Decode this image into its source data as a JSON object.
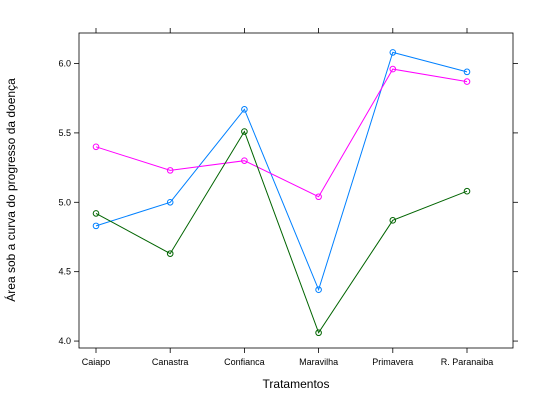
{
  "chart_data": {
    "type": "line",
    "xlabel": "Tratamentos",
    "ylabel": "Área sob a curva do progresso da doença",
    "categories": [
      "Caiapo",
      "Canastra",
      "Confianca",
      "Maravilha",
      "Primavera",
      "R. Paranaiba"
    ],
    "yticks": [
      "4.0",
      "4.5",
      "5.0",
      "5.5",
      "6.0"
    ],
    "ylim": [
      3.95,
      6.22
    ],
    "grid": false,
    "legend": "none",
    "series": [
      {
        "color": "#0080ff",
        "values": [
          4.83,
          5.0,
          5.67,
          4.37,
          6.08,
          5.94
        ]
      },
      {
        "color": "#ff00ff",
        "values": [
          5.4,
          5.23,
          5.3,
          5.04,
          5.96,
          5.87
        ]
      },
      {
        "color": "#006400",
        "values": [
          4.92,
          4.63,
          5.51,
          4.06,
          4.87,
          5.08
        ]
      }
    ]
  }
}
